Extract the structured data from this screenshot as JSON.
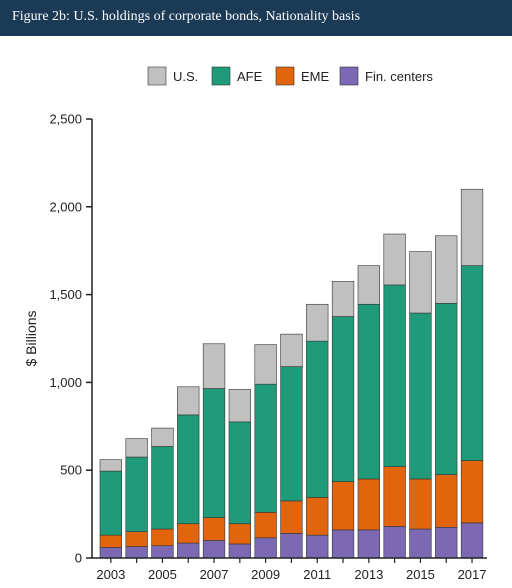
{
  "header": {
    "title": "Figure 2b: U.S. holdings of corporate bonds, Nationality basis"
  },
  "chart_data": {
    "type": "bar",
    "stacked": true,
    "ylabel": "$ Billions",
    "ylim": [
      0,
      2500
    ],
    "yticks": [
      0,
      500,
      1000,
      1500,
      2000,
      2500
    ],
    "ytick_labels": [
      "0",
      "500",
      "1,000",
      "1,500",
      "2,000",
      "2,500"
    ],
    "categories": [
      "2003",
      "2004",
      "2005",
      "2006",
      "2007",
      "2008",
      "2009",
      "2010",
      "2011",
      "2012",
      "2013",
      "2014",
      "2015",
      "2016",
      "2017"
    ],
    "xtick_labels": [
      "2003",
      "",
      "2005",
      "",
      "2007",
      "",
      "2009",
      "",
      "2011",
      "",
      "2013",
      "",
      "2015",
      "",
      "2017"
    ],
    "legend_position": "top",
    "series": [
      {
        "name": "Fin. centers",
        "color": "#7b6ab3",
        "values": [
          60,
          65,
          70,
          85,
          100,
          80,
          115,
          140,
          130,
          160,
          160,
          180,
          165,
          175,
          200
        ]
      },
      {
        "name": "EME",
        "color": "#e2650d",
        "values": [
          70,
          85,
          95,
          110,
          130,
          115,
          145,
          185,
          215,
          275,
          290,
          340,
          285,
          300,
          355
        ]
      },
      {
        "name": "AFE",
        "color": "#1f9b79",
        "values": [
          365,
          425,
          470,
          620,
          735,
          580,
          730,
          765,
          890,
          940,
          995,
          1035,
          945,
          975,
          1110
        ]
      },
      {
        "name": "U.S.",
        "color": "#c0c0c0",
        "values": [
          65,
          105,
          105,
          160,
          255,
          185,
          225,
          185,
          210,
          200,
          220,
          290,
          350,
          385,
          435
        ]
      }
    ],
    "legend_order": [
      "U.S.",
      "AFE",
      "EME",
      "Fin. centers"
    ]
  }
}
